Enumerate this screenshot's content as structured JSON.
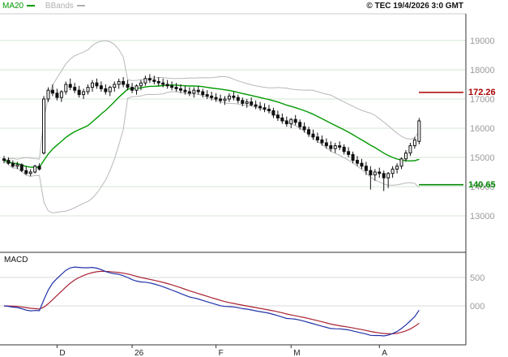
{
  "header": {
    "legend": [
      {
        "label": "MA20",
        "color": "#009900"
      },
      {
        "label": "BBands",
        "color": "#b0b0b0"
      }
    ],
    "copyright": "© TEC 19/4/2026 3:0 GMT"
  },
  "levels": [
    {
      "value": "172.26",
      "price": 17226,
      "color": "#aa0000"
    },
    {
      "value": "140.65",
      "price": 14065,
      "color": "#008800"
    }
  ],
  "macd_panel": {
    "label": "MACD"
  },
  "colors": {
    "grid": "#d4e4d4",
    "axis_text": "#9b9b9b",
    "border": "#333333",
    "candle": "#111111",
    "bbands": "#b8b8b8",
    "ma20": "#009900",
    "macd_line": "#2233aa",
    "macd_signal": "#aa2233",
    "macd_grid": "#d8d8d8"
  },
  "chart_data": {
    "type": "candlestick",
    "title": "",
    "indicators": {
      "ma": "MA20",
      "bbands": "20,2",
      "macd": "12,26,9"
    },
    "price_axis": {
      "ticks": [
        19000,
        18000,
        17000,
        16000,
        15000,
        14000,
        13000
      ],
      "visible_range": [
        11800,
        19900
      ]
    },
    "x_axis": {
      "ticks": [
        {
          "label": "D",
          "index": 12
        },
        {
          "label": "26",
          "index": 29
        },
        {
          "label": "F",
          "index": 48
        },
        {
          "label": "M",
          "index": 65
        },
        {
          "label": "A",
          "index": 85
        }
      ]
    },
    "macd_axis": {
      "ticks": [
        {
          "label": "500",
          "value": 500
        },
        {
          "label": "000",
          "value": 0
        }
      ]
    },
    "candles": [
      [
        14950,
        15050,
        14800,
        14900
      ],
      [
        14900,
        15000,
        14750,
        14800
      ],
      [
        14800,
        14900,
        14650,
        14700
      ],
      [
        14700,
        14850,
        14600,
        14750
      ],
      [
        14750,
        14800,
        14500,
        14550
      ],
      [
        14550,
        14700,
        14400,
        14450
      ],
      [
        14450,
        14600,
        14350,
        14500
      ],
      [
        14500,
        14750,
        14450,
        14700
      ],
      [
        14700,
        14800,
        14550,
        14600
      ],
      [
        15150,
        17100,
        15100,
        17000
      ],
      [
        17000,
        17400,
        16900,
        17300
      ],
      [
        17300,
        17500,
        17100,
        17200
      ],
      [
        17200,
        17350,
        16950,
        17050
      ],
      [
        17050,
        17300,
        16900,
        17250
      ],
      [
        17250,
        17600,
        17150,
        17500
      ],
      [
        17500,
        17700,
        17300,
        17400
      ],
      [
        17400,
        17550,
        17200,
        17300
      ],
      [
        17300,
        17450,
        17050,
        17150
      ],
      [
        17150,
        17350,
        17000,
        17250
      ],
      [
        17250,
        17500,
        17150,
        17400
      ],
      [
        17400,
        17650,
        17250,
        17550
      ],
      [
        17550,
        17700,
        17350,
        17450
      ],
      [
        17450,
        17600,
        17250,
        17350
      ],
      [
        17350,
        17500,
        17150,
        17250
      ],
      [
        17250,
        17450,
        17100,
        17400
      ],
      [
        17400,
        17600,
        17250,
        17500
      ],
      [
        17500,
        17700,
        17350,
        17600
      ],
      [
        17600,
        17750,
        17400,
        17500
      ],
      [
        17500,
        17650,
        17300,
        17400
      ],
      [
        17400,
        17550,
        17200,
        17300
      ],
      [
        17300,
        17500,
        17150,
        17450
      ],
      [
        17450,
        17650,
        17300,
        17550
      ],
      [
        17550,
        17800,
        17450,
        17700
      ],
      [
        17700,
        17850,
        17550,
        17650
      ],
      [
        17650,
        17800,
        17500,
        17600
      ],
      [
        17600,
        17750,
        17450,
        17550
      ],
      [
        17550,
        17700,
        17400,
        17500
      ],
      [
        17500,
        17650,
        17350,
        17450
      ],
      [
        17450,
        17600,
        17300,
        17400
      ],
      [
        17400,
        17550,
        17250,
        17350
      ],
      [
        17350,
        17500,
        17200,
        17300
      ],
      [
        17300,
        17450,
        17150,
        17250
      ],
      [
        17250,
        17400,
        17100,
        17200
      ],
      [
        17200,
        17400,
        17050,
        17300
      ],
      [
        17300,
        17450,
        17150,
        17250
      ],
      [
        17250,
        17350,
        17050,
        17150
      ],
      [
        17150,
        17300,
        17000,
        17100
      ],
      [
        17100,
        17250,
        16950,
        17050
      ],
      [
        17050,
        17200,
        16900,
        17000
      ],
      [
        17000,
        17150,
        16850,
        16950
      ],
      [
        16950,
        17100,
        16800,
        17000
      ],
      [
        17000,
        17200,
        16900,
        17100
      ],
      [
        17100,
        17250,
        16950,
        17050
      ],
      [
        17050,
        17150,
        16850,
        16950
      ],
      [
        16950,
        17050,
        16750,
        16850
      ],
      [
        16850,
        17000,
        16700,
        16900
      ],
      [
        16900,
        17050,
        16750,
        16800
      ],
      [
        16800,
        16950,
        16650,
        16750
      ],
      [
        16750,
        16900,
        16600,
        16700
      ],
      [
        16700,
        16850,
        16550,
        16650
      ],
      [
        16650,
        16800,
        16500,
        16600
      ],
      [
        16600,
        16700,
        16350,
        16450
      ],
      [
        16450,
        16600,
        16250,
        16350
      ],
      [
        16350,
        16500,
        16150,
        16250
      ],
      [
        16250,
        16400,
        16050,
        16150
      ],
      [
        16150,
        16350,
        16000,
        16300
      ],
      [
        16300,
        16450,
        16100,
        16200
      ],
      [
        16200,
        16300,
        15950,
        16050
      ],
      [
        16050,
        16200,
        15850,
        15950
      ],
      [
        15950,
        16050,
        15700,
        15800
      ],
      [
        15800,
        15950,
        15600,
        15700
      ],
      [
        15700,
        15850,
        15500,
        15600
      ],
      [
        15600,
        15750,
        15400,
        15500
      ],
      [
        15500,
        15650,
        15300,
        15400
      ],
      [
        15400,
        15550,
        15200,
        15300
      ],
      [
        15300,
        15500,
        15150,
        15400
      ],
      [
        15400,
        15550,
        15250,
        15350
      ],
      [
        15350,
        15450,
        15100,
        15200
      ],
      [
        15200,
        15350,
        15000,
        15100
      ],
      [
        15100,
        15200,
        14800,
        14900
      ],
      [
        14900,
        15050,
        14700,
        14800
      ],
      [
        14800,
        14950,
        14600,
        14700
      ],
      [
        14700,
        14850,
        14400,
        14550
      ],
      [
        14550,
        14700,
        13900,
        14400
      ],
      [
        14400,
        14600,
        14200,
        14500
      ],
      [
        14500,
        14650,
        14300,
        14450
      ],
      [
        14450,
        14550,
        13850,
        14300
      ],
      [
        14300,
        14500,
        13950,
        14450
      ],
      [
        14450,
        14700,
        14300,
        14600
      ],
      [
        14600,
        14800,
        14450,
        14700
      ],
      [
        14700,
        15000,
        14600,
        14950
      ],
      [
        14950,
        15250,
        14850,
        15150
      ],
      [
        15150,
        15500,
        15050,
        15400
      ],
      [
        15400,
        15700,
        15300,
        15600
      ],
      [
        15550,
        16350,
        15450,
        16250
      ]
    ]
  }
}
